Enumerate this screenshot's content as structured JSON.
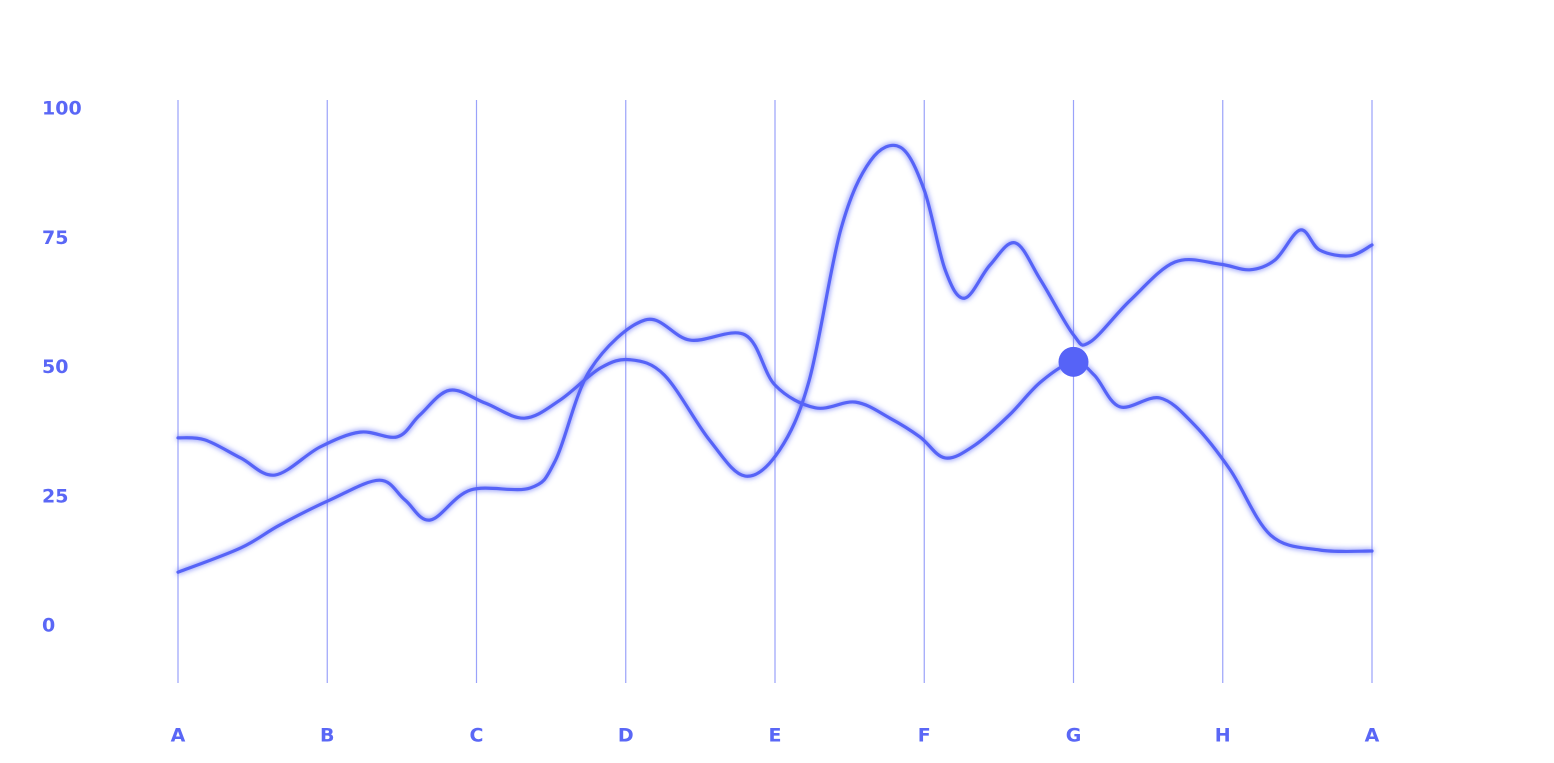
{
  "chart_data": {
    "type": "line",
    "xticks": [
      {
        "value": 0,
        "label": "A"
      },
      {
        "value": 1,
        "label": "B"
      },
      {
        "value": 2,
        "label": "C"
      },
      {
        "value": 3,
        "label": "D"
      },
      {
        "value": 4,
        "label": "E"
      },
      {
        "value": 5,
        "label": "F"
      },
      {
        "value": 6,
        "label": "G"
      },
      {
        "value": 7,
        "label": "H"
      },
      {
        "value": 8,
        "label": "A"
      }
    ],
    "xlim": [
      0,
      8
    ],
    "ylim": [
      0,
      100
    ],
    "yticks": [
      0,
      25,
      50,
      75,
      100
    ],
    "grid": true,
    "series": [
      {
        "color": "#5663f7",
        "x": [
          0,
          0.18,
          0.42,
          0.65,
          0.95,
          1.22,
          1.47,
          1.62,
          1.82,
          2.06,
          2.32,
          2.56,
          2.83,
          3.03,
          3.26,
          3.56,
          3.8,
          4.03,
          4.23,
          4.44,
          4.64,
          4.84,
          5.0,
          5.14,
          5.27,
          5.44,
          5.61,
          5.78,
          6.0,
          6.11,
          6.38,
          6.68,
          6.98,
          7.18,
          7.35,
          7.52,
          7.65,
          7.85,
          8
        ],
        "values": [
          36.4,
          36,
          32.5,
          29.2,
          34.6,
          37.5,
          36.6,
          40.8,
          45.6,
          43.1,
          40.2,
          43.7,
          49.9,
          51.5,
          48.5,
          36,
          29,
          34,
          47.6,
          76.6,
          90,
          92.6,
          84.3,
          68.9,
          63.4,
          69.8,
          74.1,
          66.9,
          56.3,
          54.9,
          63,
          70.4,
          70,
          68.9,
          70.8,
          76.6,
          72.7,
          71.6,
          73.7
        ]
      },
      {
        "color": "#5663f7",
        "x": [
          0,
          0.42,
          0.68,
          1.02,
          1.35,
          1.52,
          1.69,
          1.96,
          2.36,
          2.53,
          2.76,
          3.13,
          3.43,
          3.8,
          4.0,
          4.27,
          4.54,
          4.77,
          4.97,
          5.14,
          5.34,
          5.57,
          5.78,
          6.0,
          6.14,
          6.31,
          6.58,
          6.81,
          7.05,
          7.32,
          7.65,
          8
        ],
        "values": [
          10.4,
          15.1,
          19.5,
          24.4,
          28.2,
          24.4,
          20.5,
          26.3,
          26.7,
          32.1,
          49.5,
          59.2,
          55.3,
          56.3,
          46.6,
          42.2,
          43.3,
          40.2,
          36.6,
          32.5,
          35,
          40.8,
          47.2,
          51.1,
          48.5,
          42.4,
          44.1,
          38.9,
          30.2,
          17.6,
          14.7,
          14.5
        ]
      }
    ],
    "highlight": {
      "series": 1,
      "x": 6,
      "y": 51.1,
      "color": "#5663f7"
    }
  }
}
